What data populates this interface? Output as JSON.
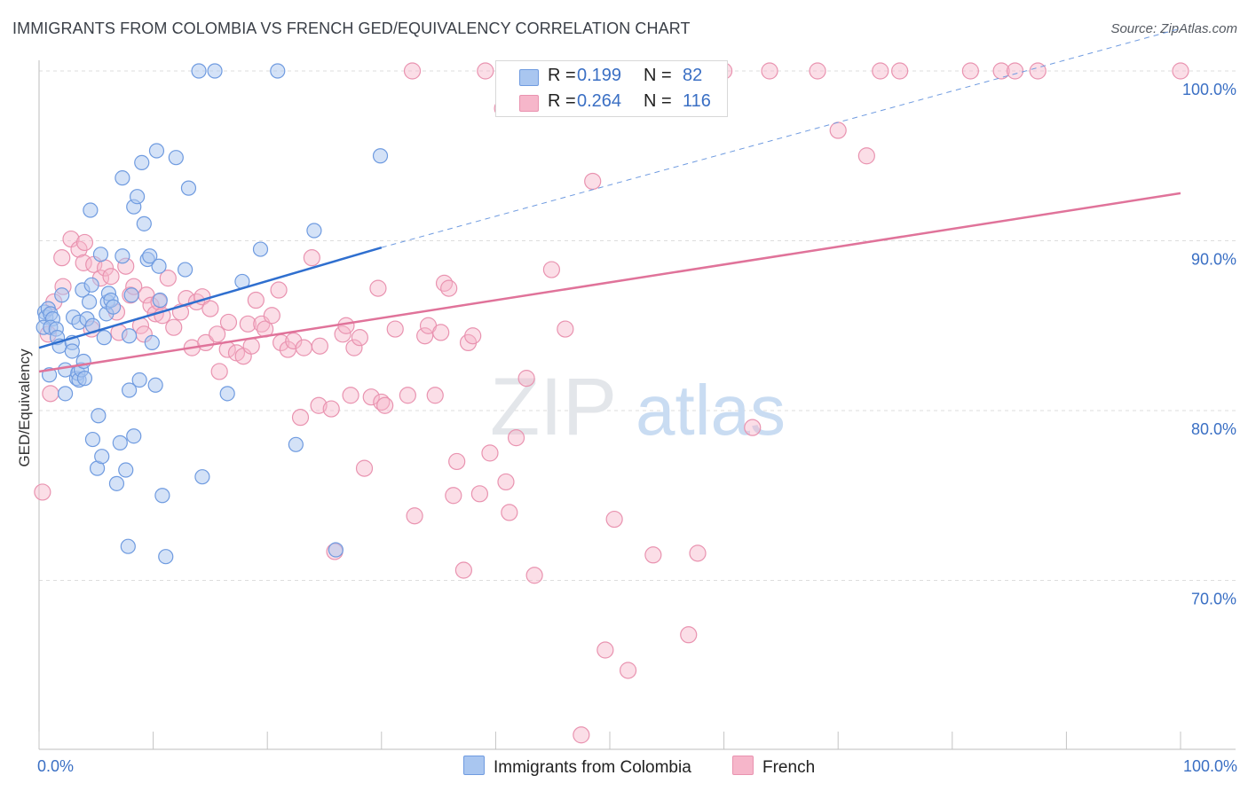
{
  "title": "IMMIGRANTS FROM COLOMBIA VS FRENCH GED/EQUIVALENCY CORRELATION CHART",
  "source": "Source: ZipAtlas.com",
  "watermark": {
    "zip": "ZIP",
    "atlas": "atlas"
  },
  "colors": {
    "blue_fill": "#a9c6f0",
    "blue_stroke": "#6f9be0",
    "blue_line": "#2f6fcf",
    "pink_fill": "#f6b6ca",
    "pink_stroke": "#e993b0",
    "pink_line": "#e0739a",
    "tick_label": "#3a6fc4",
    "grid": "#dddddd"
  },
  "stats": [
    {
      "r_label": "R =",
      "r_value": "0.199",
      "n_label": "N =",
      "n_value": "82",
      "color": "#a9c6f0"
    },
    {
      "r_label": "R =",
      "r_value": "0.264",
      "n_label": "N =",
      "n_value": "116",
      "color": "#f6b6ca"
    }
  ],
  "legend": [
    {
      "label": "Immigrants from Colombia",
      "color": "#a9c6f0"
    },
    {
      "label": "French",
      "color": "#f6b6ca"
    }
  ],
  "chart_data": {
    "type": "scatter",
    "title": "IMMIGRANTS FROM COLOMBIA VS FRENCH GED/EQUIVALENCY CORRELATION CHART",
    "xlabel": "",
    "ylabel": "GED/Equivalency",
    "xlim": [
      0,
      100
    ],
    "ylim": [
      60.5,
      101.5
    ],
    "x_tick_labels": [
      "0.0%",
      "100.0%"
    ],
    "y_ticks": [
      70,
      80,
      90,
      100
    ],
    "y_tick_labels": [
      "70.0%",
      "80.0%",
      "90.0%",
      "100.0%"
    ],
    "grid": "horizontal dashed",
    "legend_position": "bottom",
    "series": [
      {
        "name": "Immigrants from Colombia",
        "trend": {
          "x": [
            0,
            30
          ],
          "y": [
            83.7,
            89.6
          ],
          "dashed_to": {
            "x": 100,
            "y": 102.5
          }
        },
        "points": [
          [
            0.5,
            85.8
          ],
          [
            0.6,
            85.5
          ],
          [
            0.8,
            86.0
          ],
          [
            1.0,
            85.7
          ],
          [
            1.2,
            85.4
          ],
          [
            0.4,
            84.9
          ],
          [
            1.0,
            84.9
          ],
          [
            1.5,
            84.8
          ],
          [
            0.9,
            82.1
          ],
          [
            1.6,
            84.3
          ],
          [
            1.8,
            83.8
          ],
          [
            2.0,
            86.8
          ],
          [
            2.3,
            82.4
          ],
          [
            2.3,
            81.0
          ],
          [
            2.9,
            84.0
          ],
          [
            2.9,
            83.5
          ],
          [
            3.0,
            85.5
          ],
          [
            3.3,
            81.9
          ],
          [
            3.4,
            82.2
          ],
          [
            3.5,
            81.8
          ],
          [
            3.5,
            85.2
          ],
          [
            3.7,
            82.4
          ],
          [
            3.8,
            87.1
          ],
          [
            3.9,
            82.9
          ],
          [
            4.0,
            81.9
          ],
          [
            4.2,
            85.4
          ],
          [
            4.4,
            86.4
          ],
          [
            4.5,
            91.8
          ],
          [
            4.6,
            87.4
          ],
          [
            4.7,
            78.3
          ],
          [
            4.7,
            85.0
          ],
          [
            5.1,
            76.6
          ],
          [
            5.2,
            79.7
          ],
          [
            5.4,
            89.2
          ],
          [
            5.5,
            77.3
          ],
          [
            5.7,
            84.3
          ],
          [
            5.9,
            85.7
          ],
          [
            6.0,
            86.4
          ],
          [
            6.1,
            86.9
          ],
          [
            6.3,
            86.5
          ],
          [
            6.5,
            86.1
          ],
          [
            6.8,
            75.7
          ],
          [
            7.1,
            78.1
          ],
          [
            7.3,
            93.7
          ],
          [
            7.3,
            89.1
          ],
          [
            7.6,
            76.5
          ],
          [
            7.8,
            72.0
          ],
          [
            7.9,
            81.2
          ],
          [
            7.9,
            84.4
          ],
          [
            8.1,
            86.8
          ],
          [
            8.3,
            78.5
          ],
          [
            8.3,
            92.0
          ],
          [
            8.6,
            92.6
          ],
          [
            8.8,
            81.8
          ],
          [
            9.0,
            94.6
          ],
          [
            9.2,
            91.0
          ],
          [
            9.5,
            88.9
          ],
          [
            9.7,
            89.1
          ],
          [
            9.9,
            84.0
          ],
          [
            10.2,
            81.5
          ],
          [
            10.3,
            95.3
          ],
          [
            10.5,
            88.5
          ],
          [
            10.6,
            86.5
          ],
          [
            10.8,
            75.0
          ],
          [
            11.1,
            71.4
          ],
          [
            12.0,
            94.9
          ],
          [
            12.8,
            88.3
          ],
          [
            13.1,
            93.1
          ],
          [
            14.0,
            100.0
          ],
          [
            14.3,
            76.1
          ],
          [
            15.4,
            100.0
          ],
          [
            16.5,
            81.0
          ],
          [
            17.8,
            87.6
          ],
          [
            19.4,
            89.5
          ],
          [
            20.9,
            100.0
          ],
          [
            22.5,
            78.0
          ],
          [
            24.1,
            90.6
          ],
          [
            26.0,
            71.8
          ],
          [
            29.9,
            95.0
          ]
        ]
      },
      {
        "name": "French",
        "trend": {
          "x": [
            0,
            100
          ],
          "y": [
            82.3,
            92.8
          ]
        },
        "points": [
          [
            0.3,
            75.2
          ],
          [
            0.8,
            84.5
          ],
          [
            1.0,
            81.0
          ],
          [
            1.3,
            86.4
          ],
          [
            2.0,
            89.0
          ],
          [
            2.1,
            87.3
          ],
          [
            2.8,
            90.1
          ],
          [
            3.5,
            89.5
          ],
          [
            3.9,
            88.7
          ],
          [
            4.0,
            89.9
          ],
          [
            4.6,
            84.8
          ],
          [
            4.8,
            88.6
          ],
          [
            5.4,
            87.8
          ],
          [
            5.8,
            88.4
          ],
          [
            6.3,
            87.9
          ],
          [
            6.8,
            85.8
          ],
          [
            7.0,
            84.6
          ],
          [
            7.6,
            88.5
          ],
          [
            8.0,
            86.8
          ],
          [
            8.3,
            87.3
          ],
          [
            8.9,
            85.0
          ],
          [
            9.2,
            84.5
          ],
          [
            9.4,
            86.8
          ],
          [
            9.8,
            86.2
          ],
          [
            10.2,
            85.7
          ],
          [
            10.5,
            86.4
          ],
          [
            10.8,
            85.6
          ],
          [
            11.3,
            87.8
          ],
          [
            11.8,
            84.9
          ],
          [
            12.4,
            85.8
          ],
          [
            12.9,
            86.6
          ],
          [
            13.4,
            83.7
          ],
          [
            13.8,
            86.4
          ],
          [
            14.3,
            86.7
          ],
          [
            14.6,
            84.0
          ],
          [
            15.0,
            86.0
          ],
          [
            15.6,
            84.5
          ],
          [
            15.8,
            82.3
          ],
          [
            16.5,
            83.6
          ],
          [
            16.6,
            85.2
          ],
          [
            17.3,
            83.4
          ],
          [
            17.9,
            83.2
          ],
          [
            18.3,
            85.1
          ],
          [
            18.6,
            83.8
          ],
          [
            19.0,
            86.5
          ],
          [
            19.5,
            85.1
          ],
          [
            19.8,
            84.8
          ],
          [
            20.4,
            85.6
          ],
          [
            21.0,
            87.1
          ],
          [
            21.2,
            84.0
          ],
          [
            21.8,
            83.6
          ],
          [
            22.3,
            84.1
          ],
          [
            22.9,
            79.6
          ],
          [
            23.2,
            83.7
          ],
          [
            23.9,
            89.0
          ],
          [
            24.5,
            80.3
          ],
          [
            24.6,
            83.8
          ],
          [
            25.6,
            80.1
          ],
          [
            25.9,
            71.7
          ],
          [
            26.6,
            84.5
          ],
          [
            26.9,
            85.0
          ],
          [
            27.3,
            80.9
          ],
          [
            27.6,
            83.7
          ],
          [
            28.1,
            84.3
          ],
          [
            28.5,
            76.6
          ],
          [
            29.1,
            80.8
          ],
          [
            29.7,
            87.2
          ],
          [
            30.0,
            80.5
          ],
          [
            30.3,
            80.3
          ],
          [
            31.2,
            84.8
          ],
          [
            32.3,
            80.9
          ],
          [
            32.7,
            100.0
          ],
          [
            32.9,
            73.8
          ],
          [
            33.8,
            84.4
          ],
          [
            34.1,
            85.0
          ],
          [
            34.7,
            80.9
          ],
          [
            35.2,
            84.6
          ],
          [
            35.5,
            87.5
          ],
          [
            35.9,
            87.2
          ],
          [
            36.3,
            75.0
          ],
          [
            36.6,
            77.0
          ],
          [
            37.2,
            70.6
          ],
          [
            37.6,
            84.0
          ],
          [
            38.0,
            84.4
          ],
          [
            38.6,
            75.1
          ],
          [
            39.1,
            100.0
          ],
          [
            39.5,
            77.5
          ],
          [
            40.6,
            97.8
          ],
          [
            40.9,
            75.8
          ],
          [
            41.2,
            74.0
          ],
          [
            41.8,
            78.4
          ],
          [
            42.7,
            81.9
          ],
          [
            43.4,
            70.3
          ],
          [
            44.9,
            88.3
          ],
          [
            45.8,
            100.0
          ],
          [
            46.1,
            84.8
          ],
          [
            47.5,
            60.9
          ],
          [
            48.5,
            93.5
          ],
          [
            49.4,
            100.0
          ],
          [
            49.6,
            65.9
          ],
          [
            50.4,
            73.6
          ],
          [
            50.5,
            100.0
          ],
          [
            51.6,
            64.7
          ],
          [
            53.8,
            71.5
          ],
          [
            54.1,
            100.0
          ],
          [
            55.4,
            100.0
          ],
          [
            56.9,
            66.8
          ],
          [
            57.7,
            71.6
          ],
          [
            60.0,
            100.0
          ],
          [
            62.5,
            79.0
          ],
          [
            64.0,
            100.0
          ],
          [
            68.2,
            100.0
          ],
          [
            70.0,
            96.5
          ],
          [
            72.5,
            95.0
          ],
          [
            73.7,
            100.0
          ],
          [
            75.4,
            100.0
          ],
          [
            81.6,
            100.0
          ],
          [
            84.3,
            100.0
          ],
          [
            85.5,
            100.0
          ],
          [
            87.5,
            100.0
          ],
          [
            100.0,
            100.0
          ]
        ]
      }
    ]
  }
}
